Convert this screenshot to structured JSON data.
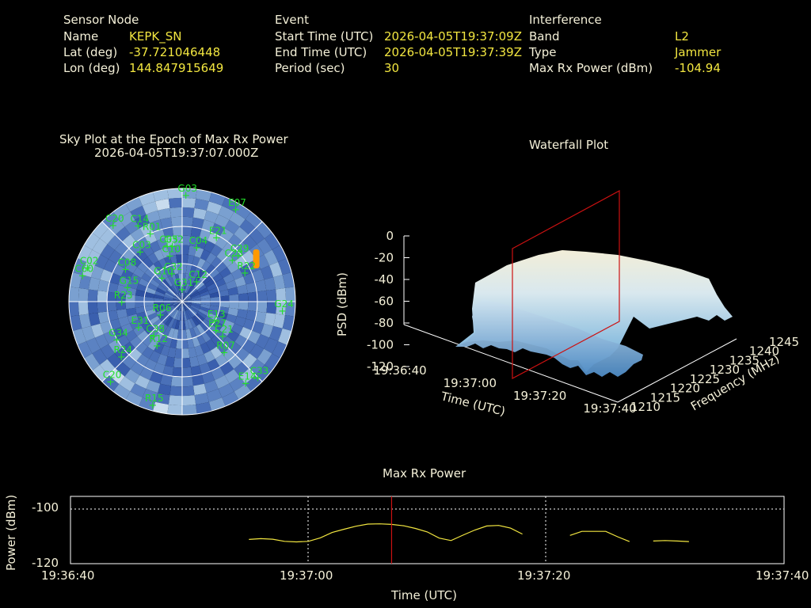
{
  "colors": {
    "background": "#000000",
    "label": "#f4f0d8",
    "value": "#f2e640",
    "satellite": "#22e02a",
    "marker": "#ff9900",
    "cursor": "#cc1111",
    "power_line": "#f2e640"
  },
  "sensor": {
    "heading": "Sensor Node",
    "rows": [
      {
        "label": "Name",
        "value": "KEPK_SN"
      },
      {
        "label": "Lat (deg)",
        "value": "-37.721046448"
      },
      {
        "label": "Lon (deg)",
        "value": "144.847915649"
      }
    ]
  },
  "event": {
    "heading": "Event",
    "rows": [
      {
        "label": "Start Time (UTC)",
        "value": "2026-04-05T19:37:09Z"
      },
      {
        "label": "End Time (UTC)",
        "value": "2026-04-05T19:37:39Z"
      },
      {
        "label": "Period (sec)",
        "value": "30"
      }
    ]
  },
  "interference": {
    "heading": "Interference",
    "rows": [
      {
        "label": "Band",
        "value": "L2"
      },
      {
        "label": "Type",
        "value": "Jammer"
      },
      {
        "label": "Max Rx Power (dBm)",
        "value": "-104.94"
      }
    ]
  },
  "sky": {
    "title_line1": "Sky Plot at the Epoch of Max Rx Power",
    "title_line2": "2026-04-05T19:37:07.000Z",
    "satellites": [
      {
        "id": "G03",
        "az": 2,
        "el": 5
      },
      {
        "id": "E07",
        "az": 30,
        "el": 5
      },
      {
        "id": "E21",
        "az": 28,
        "el": 32
      },
      {
        "id": "C20",
        "az": 318,
        "el": 8
      },
      {
        "id": "C14",
        "az": 330,
        "el": 20
      },
      {
        "id": "R01",
        "az": 335,
        "el": 30
      },
      {
        "id": "G32",
        "az": 350,
        "el": 45
      },
      {
        "id": "C05",
        "az": 345,
        "el": 44
      },
      {
        "id": "C04",
        "az": 15,
        "el": 45
      },
      {
        "id": "C10",
        "az": 345,
        "el": 52
      },
      {
        "id": "C03",
        "az": 320,
        "el": 38
      },
      {
        "id": "C29",
        "az": 50,
        "el": 32
      },
      {
        "id": "C23",
        "az": 50,
        "el": 38
      },
      {
        "id": "R22",
        "az": 65,
        "el": 35
      },
      {
        "id": "C02",
        "az": 290,
        "el": 10
      },
      {
        "id": "C60",
        "az": 285,
        "el": 8
      },
      {
        "id": "C08",
        "az": 300,
        "el": 38
      },
      {
        "id": "C32",
        "az": 340,
        "el": 66
      },
      {
        "id": "G10",
        "az": 320,
        "el": 65
      },
      {
        "id": "C12",
        "az": 35,
        "el": 70
      },
      {
        "id": "G15",
        "az": 285,
        "el": 45
      },
      {
        "id": "R23",
        "az": 270,
        "el": 42
      },
      {
        "id": "G31",
        "az": 0,
        "el": 80
      },
      {
        "id": "R06",
        "az": 240,
        "el": 70
      },
      {
        "id": "E13",
        "az": 120,
        "el": 60
      },
      {
        "id": "E27",
        "az": 130,
        "el": 55
      },
      {
        "id": "G24",
        "az": 95,
        "el": 10
      },
      {
        "id": "E31",
        "az": 240,
        "el": 50
      },
      {
        "id": "C38",
        "az": 220,
        "el": 55
      },
      {
        "id": "R12",
        "az": 210,
        "el": 50
      },
      {
        "id": "C21",
        "az": 130,
        "el": 48
      },
      {
        "id": "R07",
        "az": 140,
        "el": 38
      },
      {
        "id": "G34",
        "az": 240,
        "el": 30
      },
      {
        "id": "R24",
        "az": 228,
        "el": 25
      },
      {
        "id": "C20",
        "az": 222,
        "el": 5
      },
      {
        "id": "C33",
        "az": 135,
        "el": 5
      },
      {
        "id": "E14",
        "az": 142,
        "el": 8
      },
      {
        "id": "R15",
        "az": 196,
        "el": 5
      }
    ],
    "marker_az": 60,
    "marker_el": 22
  },
  "waterfall": {
    "title": "Waterfall Plot",
    "zlabel": "PSD (dBm)",
    "xlabel": "Time (UTC)",
    "ylabel": "Frequency (MHz)",
    "z_ticks": [
      "0",
      "-20",
      "-40",
      "-60",
      "-80",
      "-100",
      "-120"
    ],
    "time_ticks": [
      "19:36:40",
      "19:37:00",
      "19:37:20",
      "19:37:40"
    ],
    "freq_ticks": [
      "1210",
      "1215",
      "1220",
      "1225",
      "1230",
      "1235",
      "1240",
      "1245"
    ]
  },
  "chart_data": {
    "type": "line",
    "title": "Max Rx Power",
    "xlabel": "Time (UTC)",
    "ylabel": "Power (dBm)",
    "x_ticks": [
      "19:36:40",
      "19:37:00",
      "19:37:20",
      "19:37:40"
    ],
    "y_ticks": [
      "-100",
      "-120"
    ],
    "xlim": [
      "19:36:40",
      "19:37:40"
    ],
    "ylim": [
      -120,
      -95
    ],
    "grid": true,
    "cursor_time": "19:37:07",
    "series": [
      {
        "values": [
          [
            "19:36:55",
            -111
          ],
          [
            "19:36:56",
            -110.7
          ],
          [
            "19:36:57",
            -110.9
          ],
          [
            "19:36:58",
            -111.7
          ],
          [
            "19:36:59",
            -111.9
          ],
          [
            "19:37:00",
            -111.7
          ],
          [
            "19:37:01",
            -110.4
          ],
          [
            "19:37:02",
            -108.4
          ],
          [
            "19:37:03",
            -107.2
          ],
          [
            "19:37:04",
            -106.1
          ],
          [
            "19:37:05",
            -105.3
          ],
          [
            "19:37:06",
            -105.2
          ],
          [
            "19:37:07",
            -105.4
          ],
          [
            "19:37:08",
            -105.9
          ],
          [
            "19:37:09",
            -106.9
          ],
          [
            "19:37:10",
            -108.2
          ],
          [
            "19:37:11",
            -110.5
          ],
          [
            "19:37:12",
            -111.4
          ],
          [
            "19:37:13",
            -109.4
          ],
          [
            "19:37:14",
            -107.5
          ],
          [
            "19:37:15",
            -106.0
          ],
          [
            "19:37:16",
            -105.8
          ],
          [
            "19:37:17",
            -106.8
          ],
          [
            "19:37:18",
            -109.0
          ]
        ]
      },
      {
        "values": [
          [
            "19:37:22",
            -109.5
          ],
          [
            "19:37:23",
            -108.0
          ],
          [
            "19:37:24",
            -108.0
          ],
          [
            "19:37:25",
            -108.0
          ],
          [
            "19:37:26",
            -110.0
          ],
          [
            "19:37:27",
            -111.8
          ]
        ]
      },
      {
        "values": [
          [
            "19:37:29",
            -111.6
          ],
          [
            "19:37:30",
            -111.4
          ],
          [
            "19:37:31",
            -111.6
          ],
          [
            "19:37:32",
            -111.8
          ]
        ]
      }
    ]
  }
}
